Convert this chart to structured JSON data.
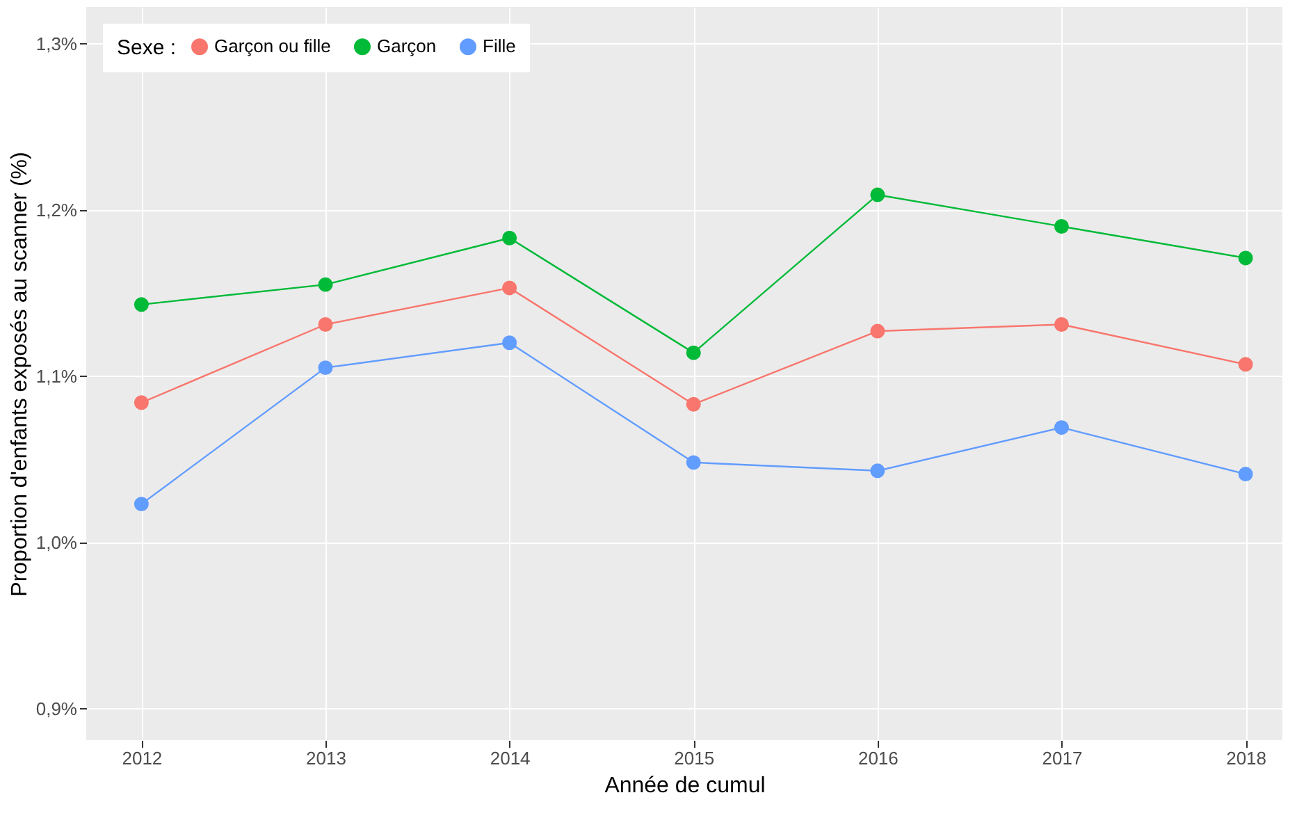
{
  "chart_data": {
    "type": "line",
    "xlabel": "Année de cumul",
    "ylabel": "Proportion d'enfants exposés au scanner (%)",
    "legend_title": "Sexe :",
    "x": [
      2012,
      2013,
      2014,
      2015,
      2016,
      2017,
      2018
    ],
    "series": [
      {
        "name": "Garçon ou fille",
        "color": "#f8766d",
        "values": [
          1.084,
          1.131,
          1.153,
          1.083,
          1.127,
          1.131,
          1.107
        ]
      },
      {
        "name": "Garçon",
        "color": "#00ba38",
        "values": [
          1.143,
          1.155,
          1.183,
          1.114,
          1.209,
          1.19,
          1.171
        ]
      },
      {
        "name": "Fille",
        "color": "#619cff",
        "values": [
          1.023,
          1.105,
          1.12,
          1.048,
          1.043,
          1.069,
          1.041
        ]
      }
    ],
    "xlim": [
      2011.7,
      2018.2
    ],
    "xticks": [
      2012,
      2013,
      2014,
      2015,
      2016,
      2017,
      2018
    ],
    "ylim": [
      0.881,
      1.322
    ],
    "yticks": [
      {
        "value": 0.9,
        "label": "0,9%"
      },
      {
        "value": 1.0,
        "label": "1,0%"
      },
      {
        "value": 1.1,
        "label": "1,1%"
      },
      {
        "value": 1.2,
        "label": "1,2%"
      },
      {
        "value": 1.3,
        "label": "1,3%"
      }
    ],
    "grid": true,
    "legend": "top left",
    "marker": "circle",
    "line_style": "solid"
  }
}
